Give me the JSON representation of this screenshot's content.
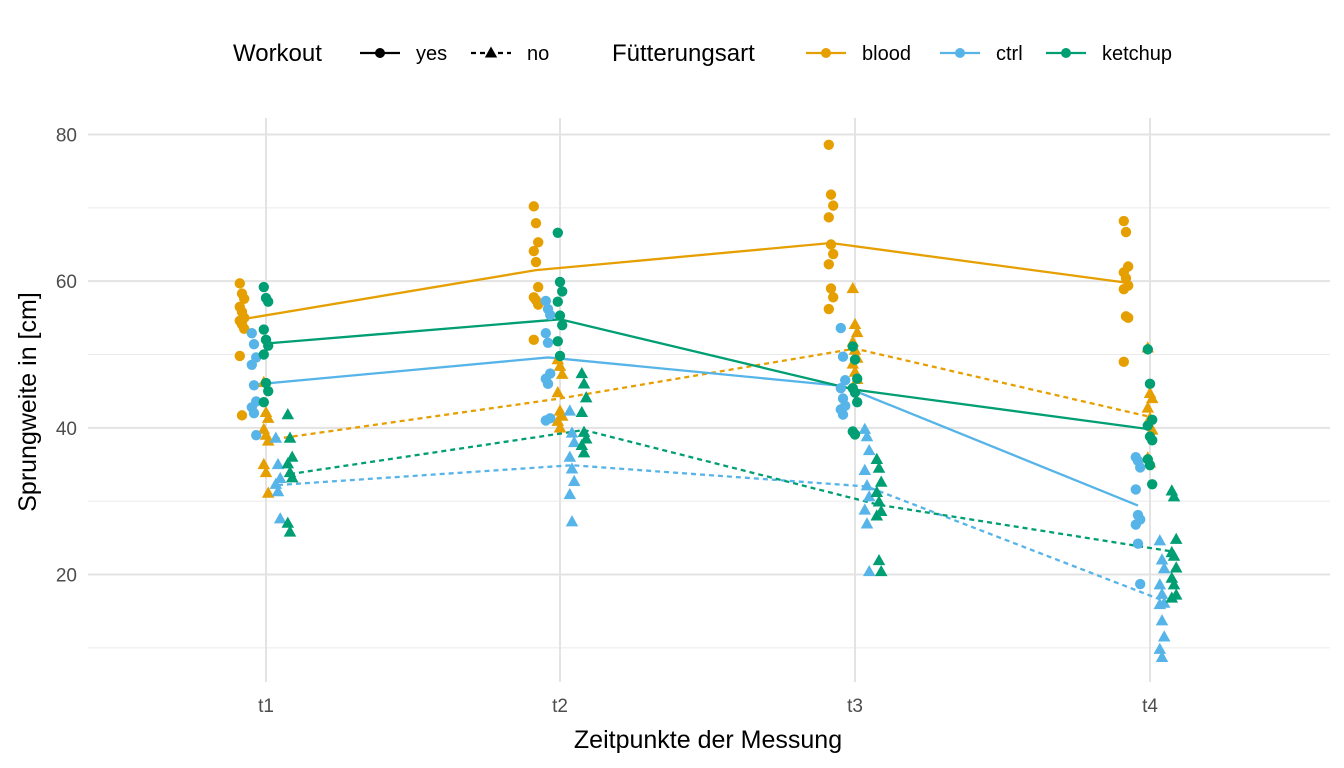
{
  "chart_data": {
    "type": "scatter",
    "xlabel": "Zeitpunkte der Messung",
    "ylabel": "Sprungweite in [cm]",
    "categories": [
      "t1",
      "t2",
      "t3",
      "t4"
    ],
    "ylim": [
      5,
      82
    ],
    "yticks": [
      20,
      40,
      60,
      80
    ],
    "grid": true,
    "legend_position": "top",
    "legend": {
      "workout_title": "Workout",
      "workout_items": [
        {
          "label": "yes",
          "shape": "circle",
          "line": "solid"
        },
        {
          "label": "no",
          "shape": "triangle",
          "line": "dashed"
        }
      ],
      "feeding_title": "Fütterungsart",
      "feeding_items": [
        {
          "label": "blood",
          "color": "#E69F00"
        },
        {
          "label": "ctrl",
          "color": "#56B4E9"
        },
        {
          "label": "ketchup",
          "color": "#009E73"
        }
      ]
    },
    "colors": {
      "blood": "#E69F00",
      "ctrl": "#56B4E9",
      "ketchup": "#009E73"
    },
    "series": [
      {
        "feeding": "blood",
        "workout": "yes",
        "means": [
          54.8,
          61.5,
          65.2,
          59.8
        ],
        "points": [
          [
            59.7,
            58.3,
            57.6,
            56.5,
            55.8,
            55.0,
            54.6,
            54.1,
            53.5,
            49.8,
            41.7
          ],
          [
            70.2,
            67.9,
            65.3,
            64.1,
            62.6,
            59.2,
            57.8,
            57.4,
            56.8,
            52.0
          ],
          [
            78.6,
            71.8,
            70.3,
            68.7,
            65.0,
            63.7,
            62.3,
            59.0,
            57.8,
            56.2
          ],
          [
            68.2,
            66.7,
            62.0,
            61.2,
            60.4,
            59.4,
            58.9,
            55.2,
            55.0,
            49.0
          ]
        ]
      },
      {
        "feeding": "blood",
        "workout": "no",
        "means": [
          38.3,
          44.0,
          50.8,
          41.5
        ],
        "points": [
          [
            46.2,
            42.1,
            41.3,
            39.8,
            39.0,
            38.2,
            35.0,
            33.9,
            31.1
          ],
          [
            49.3,
            48.4,
            47.3,
            44.8,
            42.3,
            41.6,
            40.9,
            40.0
          ],
          [
            59.0,
            54.1,
            53.0,
            51.7,
            50.6,
            49.5,
            48.7,
            47.6,
            46.6
          ],
          [
            50.9,
            44.7,
            44.0,
            42.7,
            41.3,
            39.7,
            35.9,
            35.2
          ]
        ]
      },
      {
        "feeding": "ctrl",
        "workout": "yes",
        "means": [
          45.9,
          49.6,
          45.7,
          29.4
        ],
        "points": [
          [
            52.9,
            51.4,
            49.6,
            48.6,
            45.8,
            43.6,
            42.8,
            42.0,
            39.0
          ],
          [
            57.3,
            56.2,
            55.4,
            52.9,
            51.6,
            47.4,
            46.7,
            46.0,
            41.3,
            41.0
          ],
          [
            53.6,
            49.7,
            46.5,
            45.4,
            44.0,
            43.0,
            42.5,
            41.8
          ],
          [
            36.0,
            35.5,
            34.6,
            31.6,
            28.1,
            27.5,
            26.8,
            24.2,
            18.7
          ]
        ]
      },
      {
        "feeding": "ctrl",
        "workout": "no",
        "means": [
          32.2,
          34.9,
          32.0,
          16.5
        ],
        "points": [
          [
            38.6,
            35.0,
            33.1,
            32.3,
            31.3,
            27.6
          ],
          [
            42.3,
            39.3,
            38.0,
            36.0,
            34.4,
            32.7,
            30.9,
            27.2
          ],
          [
            39.8,
            38.8,
            36.9,
            34.2,
            32.1,
            30.6,
            28.8,
            26.9,
            20.4
          ],
          [
            24.6,
            22.0,
            20.8,
            18.6,
            17.3,
            16.1,
            15.9,
            13.7,
            11.5,
            9.8,
            8.7
          ]
        ]
      },
      {
        "feeding": "ketchup",
        "workout": "yes",
        "means": [
          51.5,
          54.8,
          45.2,
          39.8
        ],
        "points": [
          [
            59.2,
            57.7,
            57.2,
            53.4,
            52.0,
            51.2,
            50.0,
            46.1,
            45.0,
            43.5
          ],
          [
            66.6,
            59.9,
            58.6,
            57.2,
            55.3,
            54.0,
            51.8,
            49.8
          ],
          [
            51.1,
            49.3,
            46.7,
            45.4,
            44.8,
            43.5,
            39.5,
            39.1
          ],
          [
            50.7,
            46.0,
            41.1,
            40.3,
            38.8,
            38.3,
            35.7,
            34.9,
            32.3
          ]
        ]
      },
      {
        "feeding": "ketchup",
        "workout": "no",
        "means": [
          33.7,
          39.7,
          29.5,
          23.1
        ],
        "points": [
          [
            41.8,
            38.6,
            36.0,
            35.1,
            33.9,
            33.2,
            27.0,
            25.8
          ],
          [
            47.4,
            46.0,
            44.1,
            42.1,
            39.4,
            38.5,
            37.6,
            36.6
          ],
          [
            35.7,
            34.5,
            32.6,
            31.2,
            29.9,
            28.6,
            28.0,
            21.9,
            20.4
          ],
          [
            31.4,
            30.6,
            24.8,
            23.0,
            22.5,
            20.9,
            19.5,
            18.6,
            17.2,
            16.8
          ]
        ]
      }
    ]
  }
}
